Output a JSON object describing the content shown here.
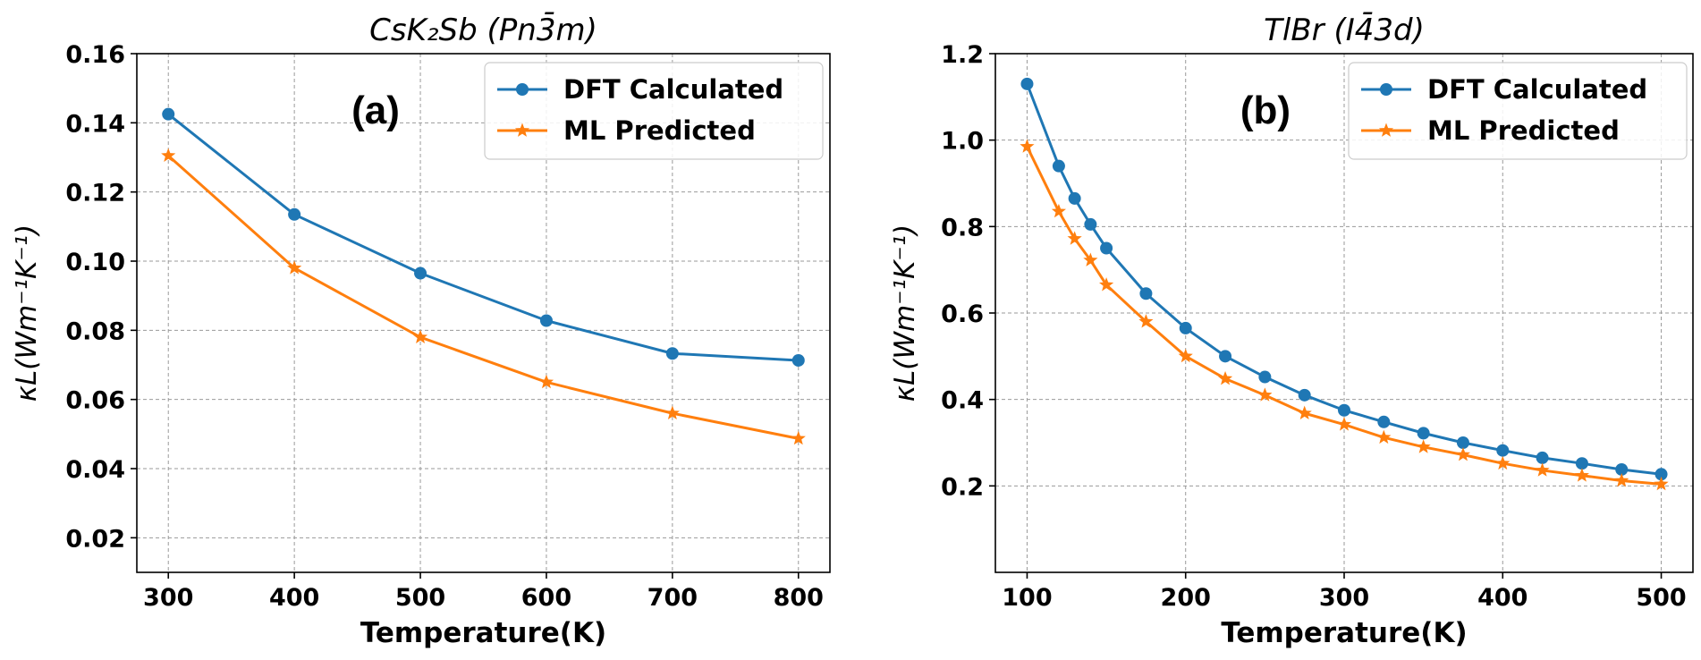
{
  "chart_data": [
    {
      "type": "line",
      "panel_label": "(a)",
      "title": "CsK₂Sb (Pn3̄m)",
      "xlabel": "Temperature(K)",
      "ylabel": "κL(Wm⁻¹K⁻¹)",
      "xlim": [
        275,
        825
      ],
      "ylim": [
        0.01,
        0.16
      ],
      "xticks": [
        300,
        400,
        500,
        600,
        700,
        800
      ],
      "yticks": [
        0.02,
        0.04,
        0.06,
        0.08,
        0.1,
        0.12,
        0.14,
        0.16
      ],
      "ytick_labels": [
        "0.02",
        "0.04",
        "0.06",
        "0.08",
        "0.10",
        "0.12",
        "0.14",
        "0.16"
      ],
      "grid": true,
      "legend_position": "top-right",
      "series": [
        {
          "name": "DFT Calculated",
          "color": "#1f77b4",
          "marker": "circle",
          "x": [
            300,
            400,
            500,
            600,
            700,
            800
          ],
          "y": [
            0.1425,
            0.1135,
            0.0965,
            0.0828,
            0.0733,
            0.0713
          ]
        },
        {
          "name": "ML Predicted",
          "color": "#ff7f0e",
          "marker": "star",
          "x": [
            300,
            400,
            500,
            600,
            700,
            800
          ],
          "y": [
            0.1305,
            0.098,
            0.078,
            0.065,
            0.056,
            0.0487
          ]
        }
      ]
    },
    {
      "type": "line",
      "panel_label": "(b)",
      "title": "TlBr (I4̄3d)",
      "xlabel": "Temperature(K)",
      "ylabel": "κL(Wm⁻¹K⁻¹)",
      "xlim": [
        80,
        520
      ],
      "ylim": [
        0.0,
        1.2
      ],
      "xticks": [
        100,
        200,
        300,
        400,
        500
      ],
      "yticks": [
        0.2,
        0.4,
        0.6,
        0.8,
        1.0,
        1.2
      ],
      "ytick_labels": [
        "0.2",
        "0.4",
        "0.6",
        "0.8",
        "1.0",
        "1.2"
      ],
      "grid": true,
      "legend_position": "top-right",
      "series": [
        {
          "name": "DFT Calculated",
          "color": "#1f77b4",
          "marker": "circle",
          "x": [
            100,
            120,
            130,
            140,
            150,
            175,
            200,
            225,
            250,
            275,
            300,
            325,
            350,
            375,
            400,
            425,
            450,
            475,
            500
          ],
          "y": [
            1.13,
            0.94,
            0.865,
            0.805,
            0.75,
            0.645,
            0.565,
            0.5,
            0.452,
            0.41,
            0.375,
            0.348,
            0.322,
            0.3,
            0.282,
            0.265,
            0.252,
            0.238,
            0.227
          ]
        },
        {
          "name": "ML Predicted",
          "color": "#ff7f0e",
          "marker": "star",
          "x": [
            100,
            120,
            130,
            140,
            150,
            175,
            200,
            225,
            250,
            275,
            300,
            325,
            350,
            375,
            400,
            425,
            450,
            475,
            500
          ],
          "y": [
            0.985,
            0.835,
            0.772,
            0.722,
            0.665,
            0.58,
            0.5,
            0.448,
            0.41,
            0.368,
            0.342,
            0.312,
            0.29,
            0.272,
            0.252,
            0.236,
            0.224,
            0.212,
            0.204
          ]
        }
      ]
    }
  ]
}
